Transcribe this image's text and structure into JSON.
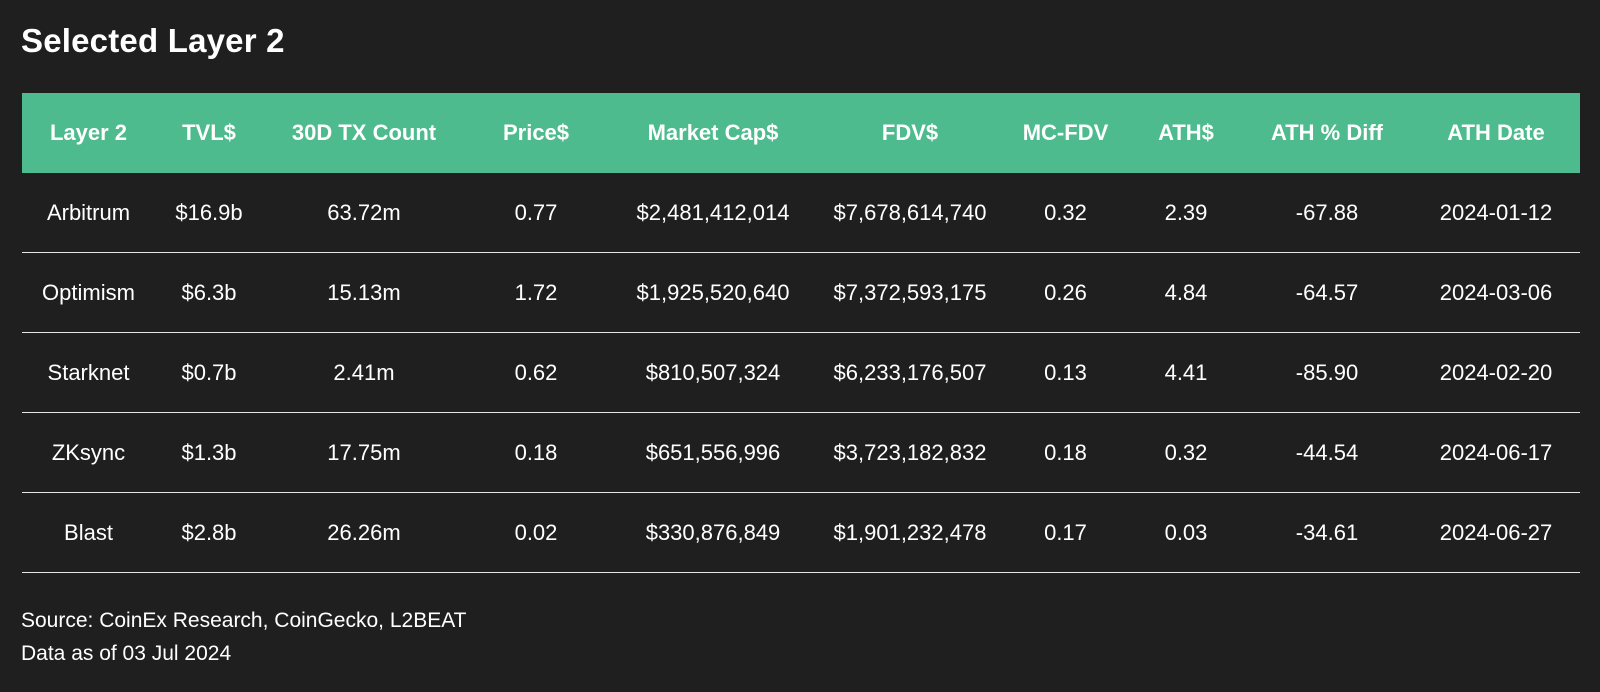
{
  "title": "Selected Layer 2",
  "chart_data": {
    "type": "table",
    "columns": [
      "Layer 2",
      "TVL$",
      "30D TX Count",
      "Price$",
      "Market Cap$",
      "FDV$",
      "MC-FDV",
      "ATH$",
      "ATH % Diff",
      "ATH Date"
    ],
    "rows": [
      [
        "Arbitrum",
        "$16.9b",
        "63.72m",
        "0.77",
        "$2,481,412,014",
        "$7,678,614,740",
        "0.32",
        "2.39",
        "-67.88",
        "2024-01-12"
      ],
      [
        "Optimism",
        "$6.3b",
        "15.13m",
        "1.72",
        "$1,925,520,640",
        "$7,372,593,175",
        "0.26",
        "4.84",
        "-64.57",
        "2024-03-06"
      ],
      [
        "Starknet",
        "$0.7b",
        "2.41m",
        "0.62",
        "$810,507,324",
        "$6,233,176,507",
        "0.13",
        "4.41",
        "-85.90",
        "2024-02-20"
      ],
      [
        "ZKsync",
        "$1.3b",
        "17.75m",
        "0.18",
        "$651,556,996",
        "$3,723,182,832",
        "0.18",
        "0.32",
        "-44.54",
        "2024-06-17"
      ],
      [
        "Blast",
        "$2.8b",
        "26.26m",
        "0.02",
        "$330,876,849",
        "$1,901,232,478",
        "0.17",
        "0.03",
        "-34.61",
        "2024-06-27"
      ]
    ]
  },
  "footer": {
    "source": "Source: CoinEx Research, CoinGecko, L2BEAT",
    "date_note": "Data as of 03 Jul 2024"
  },
  "colors": {
    "background": "#1f1f1f",
    "header": "#4dbb8d",
    "text": "#ffffff",
    "divider": "#e6e6e6"
  }
}
